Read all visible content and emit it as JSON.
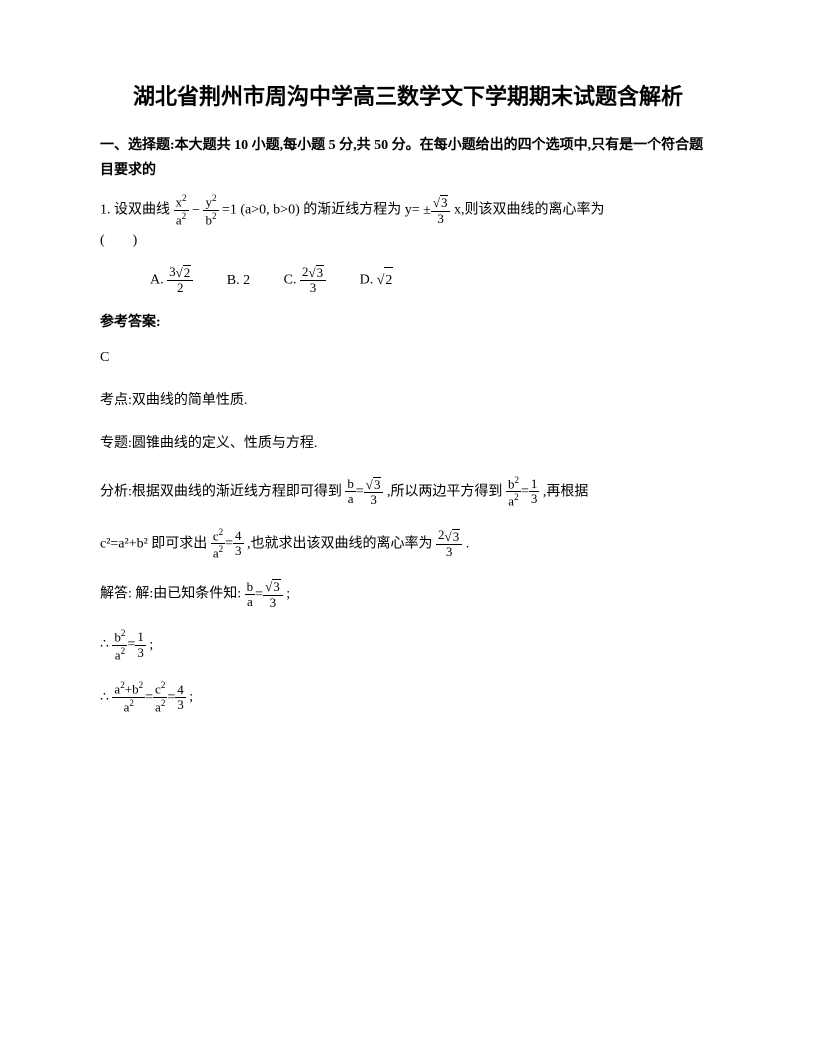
{
  "title": "湖北省荆州市周沟中学高三数学文下学期期末试题含解析",
  "section": {
    "header": "一、选择题:本大题共 10 小题,每小题 5 分,共 50 分。在每小题给出的四个选项中,只有是一个符合题目要求的"
  },
  "q1": {
    "number": "1.",
    "prefix": "设双曲线",
    "eq_text": "=1 (a>0, b>0) 的渐近线方程为 y=",
    "suffix": "x,则该双曲线的离心率为",
    "paren": "(　　)",
    "options": {
      "A": "A.",
      "B": "B. 2",
      "C": "C.",
      "D": "D."
    }
  },
  "answer": {
    "label": "参考答案:",
    "value": "C",
    "topic_label": "考点:",
    "topic": "双曲线的简单性质.",
    "special_label": "专题:",
    "special": "圆锥曲线的定义、性质与方程.",
    "analysis_label": "分析:",
    "analysis_1": "根据双曲线的渐近线方程即可得到",
    "analysis_2": ",所以两边平方得到",
    "analysis_3": ",再根据",
    "analysis_c": "c²=a²+b² 即可求出",
    "analysis_4": ",也就求出该双曲线的离心率为",
    "period": ".",
    "solve_label": "解答:",
    "solve_1": " 解:由已知条件知:",
    "semicolon": ";"
  }
}
